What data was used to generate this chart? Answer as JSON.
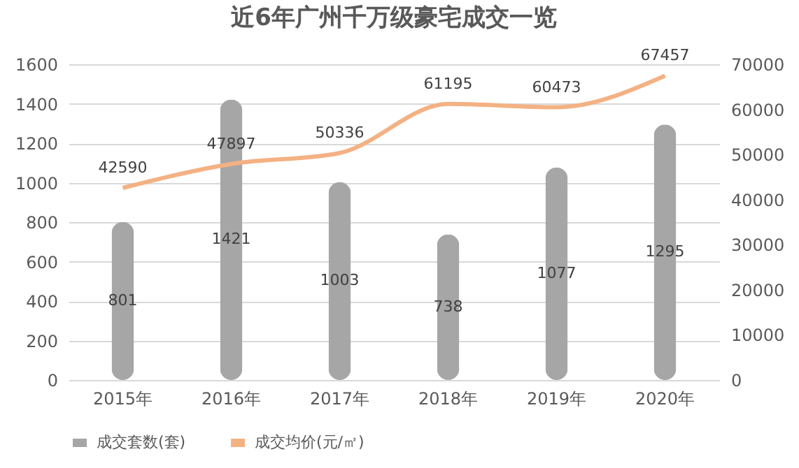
{
  "chart_data": {
    "type": "bar",
    "title": "近6年广州千万级豪宅成交一览",
    "categories": [
      "2015年",
      "2016年",
      "2017年",
      "2018年",
      "2019年",
      "2020年"
    ],
    "series": [
      {
        "name": "成交套数(套)",
        "color": "#a6a6a6",
        "values": [
          801,
          1421,
          1003,
          738,
          1077,
          1295
        ]
      },
      {
        "name": "成交均价(元/㎡)",
        "type": "line",
        "axis": "y2",
        "color": "#f4b183",
        "values": [
          42590,
          47897,
          50336,
          61195,
          60473,
          67457
        ]
      }
    ],
    "ylim": [
      0,
      1600
    ],
    "yticks": [
      0,
      200,
      400,
      600,
      800,
      1000,
      1200,
      1400,
      1600
    ],
    "y2lim": [
      0,
      70000
    ],
    "y2ticks": [
      0,
      10000,
      20000,
      30000,
      40000,
      50000,
      60000,
      70000
    ],
    "grid": "y",
    "legend": "bottom",
    "data_labels": true,
    "marker": "none"
  }
}
